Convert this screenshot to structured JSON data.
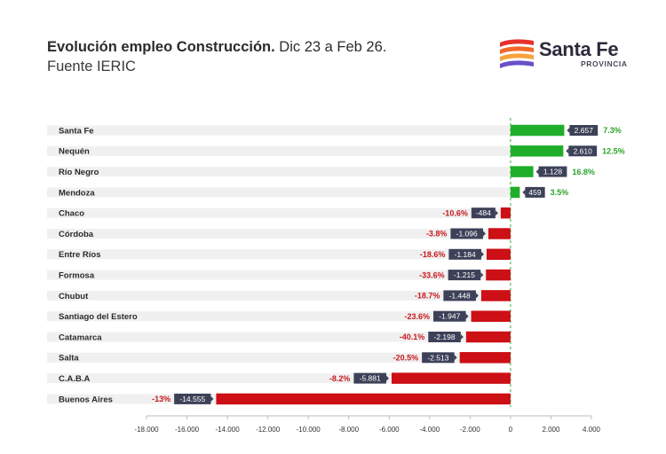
{
  "header": {
    "title_bold": "Evolución empleo Construcción.",
    "title_rest": " Dic 23 a Feb 26.",
    "subtitle": "Fuente IERIC"
  },
  "logo": {
    "name": "Santa Fe",
    "sub": "PROVINCIA",
    "colors": [
      "#e8302c",
      "#f2682a",
      "#f7a23a",
      "#6a4fc8"
    ]
  },
  "colors": {
    "positive_bar": "#1fae2a",
    "negative_bar": "#cc1016",
    "positive_text": "#2aa32a",
    "negative_text": "#c8181c",
    "value_box": "#3d4158",
    "row_band": "#f0f0f0",
    "zero_line": "#3aa83a"
  },
  "chart_data": {
    "type": "bar",
    "orientation": "horizontal",
    "categories": [
      "Santa Fe",
      "Nequén",
      "Río Negro",
      "Mendoza",
      "Chaco",
      "Córdoba",
      "Entre Ríos",
      "Formosa",
      "Chubut",
      "Santiago del Estero",
      "Catamarca",
      "Salta",
      "C.A.B.A",
      "Buenos Aires"
    ],
    "values": [
      2657,
      2610,
      1128,
      459,
      -484,
      -1096,
      -1184,
      -1215,
      -1448,
      -1947,
      -2198,
      -2513,
      -5881,
      -14555
    ],
    "value_labels": [
      "2.657",
      "2.610",
      "1.128",
      "459",
      "-484",
      "-1.096",
      "-1.184",
      "-1.215",
      "-1.448",
      "-1.947",
      "-2.198",
      "-2.513",
      "-5.881",
      "-14.555"
    ],
    "pct_labels": [
      "7.3%",
      "12.5%",
      "16.8%",
      "3.5%",
      "-10.6%",
      "-3.8%",
      "-18.6%",
      "-33.6%",
      "-18.7%",
      "-23.6%",
      "-40.1%",
      "-20.5%",
      "-8.2%",
      "-13%"
    ],
    "xlim": [
      -18000,
      4000
    ],
    "xticks": [
      -18000,
      -16000,
      -14000,
      -12000,
      -10000,
      -8000,
      -6000,
      -4000,
      -2000,
      0,
      2000,
      4000
    ],
    "xtick_labels": [
      "-18.000",
      "-16.000",
      "-14.000",
      "-12.000",
      "-10.000",
      "-8.000",
      "-6.000",
      "-4.000",
      "-2.000",
      "0",
      "2.000",
      "4.000"
    ],
    "grid": false,
    "legend": "none",
    "title": "Evolución empleo Construcción. Dic 23 a Feb 26.",
    "subtitle": "Fuente IERIC",
    "xlabel": "",
    "ylabel": ""
  }
}
